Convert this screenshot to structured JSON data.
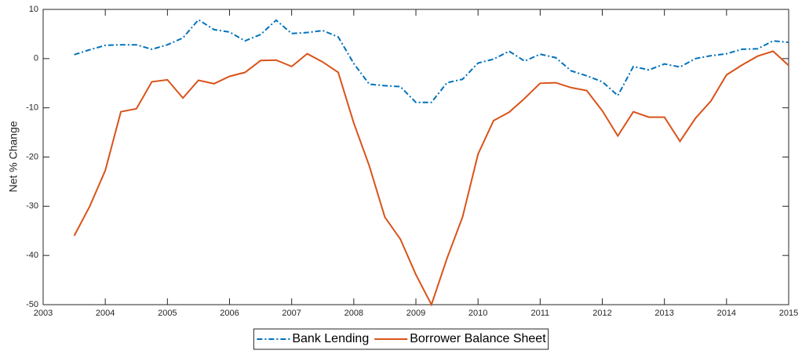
{
  "chart_data": {
    "type": "line",
    "y_label": "Net % Change",
    "x": [
      2003.5,
      2003.75,
      2004,
      2004.25,
      2004.5,
      2004.75,
      2005,
      2005.25,
      2005.5,
      2005.75,
      2006,
      2006.25,
      2006.5,
      2006.75,
      2007,
      2007.25,
      2007.5,
      2007.75,
      2008,
      2008.25,
      2008.5,
      2008.75,
      2009,
      2009.25,
      2009.5,
      2009.75,
      2010,
      2010.25,
      2010.5,
      2010.75,
      2011,
      2011.25,
      2011.5,
      2011.75,
      2012,
      2012.25,
      2012.5,
      2012.75,
      2013,
      2013.25,
      2013.5,
      2013.75,
      2014,
      2014.25,
      2014.5,
      2014.75,
      2015
    ],
    "series": [
      {
        "name": "Bank Lending",
        "color": "#0072bd",
        "dash": "dashdot",
        "values": [
          0.8,
          1.8,
          2.7,
          2.8,
          2.8,
          1.9,
          2.8,
          4.2,
          7.9,
          5.9,
          5.4,
          3.6,
          4.9,
          7.8,
          5.1,
          5.3,
          5.7,
          4.4,
          -1.0,
          -5.2,
          -5.5,
          -5.7,
          -8.9,
          -8.9,
          -4.9,
          -4.2,
          -0.9,
          -0.1,
          1.5,
          -0.5,
          0.9,
          0.2,
          -2.5,
          -3.5,
          -4.7,
          -7.5,
          -1.6,
          -2.3,
          -1.1,
          -1.7,
          0.0,
          0.6,
          1.0,
          1.9,
          2.0,
          3.6,
          3.3
        ]
      },
      {
        "name": "Borrower Balance Sheet",
        "color": "#d95319",
        "dash": "solid",
        "values": [
          -36,
          -30,
          -22.7,
          -10.8,
          -10.2,
          -4.7,
          -4.3,
          -8.0,
          -4.4,
          -5.1,
          -3.6,
          -2.8,
          -0.4,
          -0.3,
          -1.6,
          1.0,
          -0.7,
          -2.8,
          -13.1,
          -21.8,
          -32.2,
          -36.7,
          -43.9,
          -50,
          -40.6,
          -32.2,
          -19.4,
          -12.6,
          -10.9,
          -8.1,
          -5.0,
          -4.9,
          -5.9,
          -6.5,
          -10.6,
          -15.7,
          -10.8,
          -11.9,
          -11.9,
          -16.8,
          -12.1,
          -8.6,
          -3.3,
          -1.3,
          0.5,
          1.5,
          -1.4
        ]
      }
    ],
    "xlim": [
      2003,
      2015
    ],
    "xticks": [
      2003,
      2004,
      2005,
      2006,
      2007,
      2008,
      2009,
      2010,
      2011,
      2012,
      2013,
      2014,
      2015
    ],
    "ylim": [
      -50,
      10
    ],
    "yticks": [
      -50,
      -40,
      -30,
      -20,
      -10,
      0,
      10
    ],
    "legend": "bottom"
  }
}
